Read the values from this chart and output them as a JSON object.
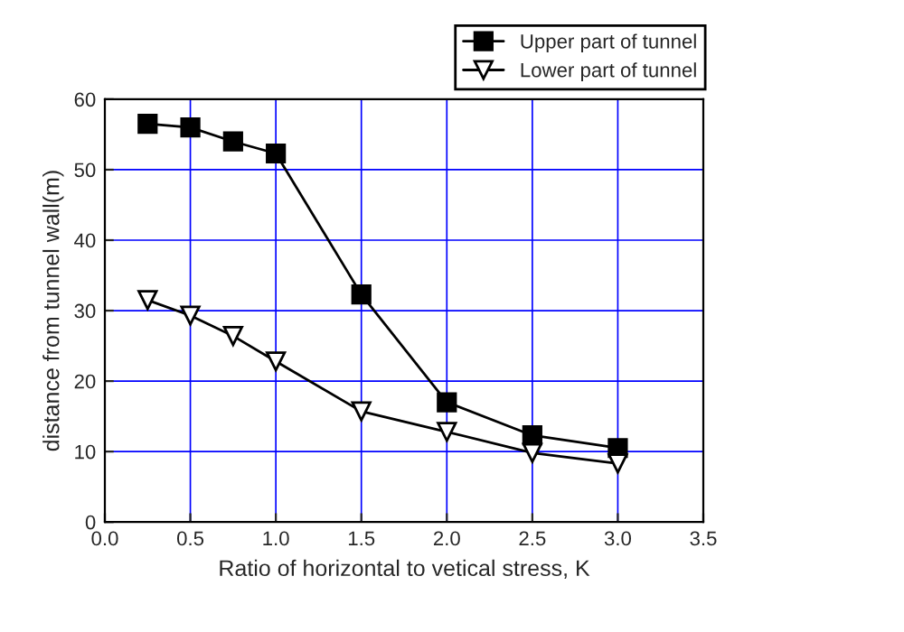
{
  "chart_data": {
    "type": "line",
    "xlabel": "Ratio of horizontal to vetical stress, K",
    "ylabel": "distance from tunnel wall(m)",
    "x": [
      0.25,
      0.5,
      0.75,
      1.0,
      1.5,
      2.0,
      2.5,
      3.0
    ],
    "series": [
      {
        "name": "Upper part of tunnel",
        "color": "#000000",
        "marker": "square",
        "values": [
          56.5,
          56,
          54,
          52.3,
          32.3,
          17,
          12.3,
          10.5
        ]
      },
      {
        "name": "Lower part of tunnel",
        "color": "#000000",
        "marker": "triangle",
        "values": [
          31.5,
          29.3,
          26.4,
          22.8,
          15.7,
          12.8,
          9.8,
          8.3
        ]
      }
    ],
    "xlim": [
      0,
      3.5
    ],
    "xticks": [
      {
        "value": 0,
        "label": "0.0"
      },
      {
        "value": 0.5,
        "label": "0.5"
      },
      {
        "value": 1,
        "label": "1.0"
      },
      {
        "value": 1.5,
        "label": "1.5"
      },
      {
        "value": 2,
        "label": "2.0"
      },
      {
        "value": 2.5,
        "label": "2.5"
      },
      {
        "value": 3,
        "label": "3.0"
      },
      {
        "value": 3.5,
        "label": "3.5"
      }
    ],
    "ylim": [
      0,
      60
    ],
    "yticks": [
      0,
      10,
      20,
      30,
      40,
      50,
      60
    ],
    "grid": true,
    "legend": "top right",
    "line_style": "solid"
  }
}
